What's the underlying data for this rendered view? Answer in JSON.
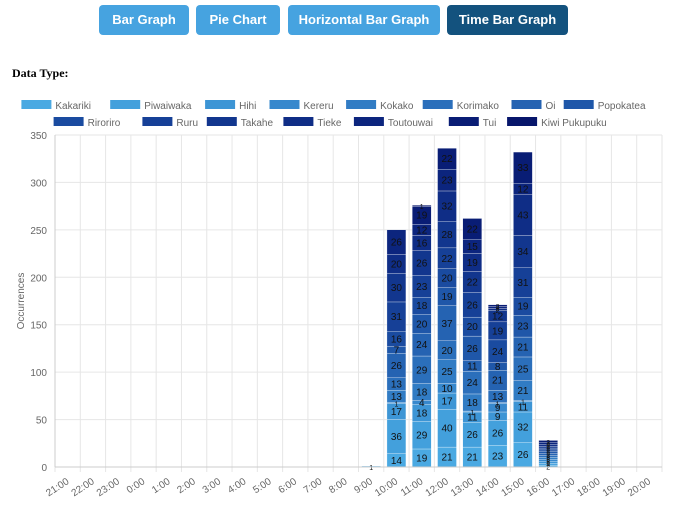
{
  "tabs": [
    {
      "label": "Bar Graph",
      "active": false
    },
    {
      "label": "Pie Chart",
      "active": false
    },
    {
      "label": "Horizontal Bar Graph",
      "active": false
    },
    {
      "label": "Time Bar Graph",
      "active": true
    }
  ],
  "data_type_label": "Data Type:",
  "chart_data": {
    "type": "bar",
    "stacked": true,
    "ylabel": "Occurrences",
    "ylim": [
      0,
      350
    ],
    "yticks": [
      0,
      50,
      100,
      150,
      200,
      250,
      300,
      350
    ],
    "grid": true,
    "legend": "top",
    "categories": [
      "21:00",
      "22:00",
      "23:00",
      "0:00",
      "1:00",
      "2:00",
      "3:00",
      "4:00",
      "5:00",
      "6:00",
      "7:00",
      "8:00",
      "9:00",
      "10:00",
      "11:00",
      "12:00",
      "13:00",
      "14:00",
      "15:00",
      "16:00",
      "17:00",
      "18:00",
      "19:00",
      "20:00"
    ],
    "series": [
      {
        "name": "Kakariki",
        "color": "#4aa9e2",
        "values": [
          0,
          0,
          0,
          0,
          0,
          0,
          0,
          0,
          0,
          0,
          0,
          0,
          1,
          14,
          19,
          21,
          21,
          23,
          26,
          2,
          0,
          0,
          0,
          0
        ]
      },
      {
        "name": "Piwaiwaka",
        "color": "#43a0dc",
        "values": [
          0,
          0,
          0,
          0,
          0,
          0,
          0,
          0,
          0,
          0,
          0,
          0,
          0,
          36,
          29,
          40,
          26,
          26,
          32,
          2,
          0,
          0,
          0,
          0
        ]
      },
      {
        "name": "Hihi",
        "color": "#3d95d5",
        "values": [
          0,
          0,
          0,
          0,
          0,
          0,
          0,
          0,
          0,
          0,
          0,
          0,
          0,
          17,
          18,
          17,
          11,
          9,
          11,
          2,
          0,
          0,
          0,
          0
        ]
      },
      {
        "name": "Kereru",
        "color": "#3788cd",
        "values": [
          0,
          0,
          0,
          0,
          0,
          0,
          0,
          0,
          0,
          0,
          0,
          0,
          0,
          1,
          4,
          10,
          1,
          9,
          1,
          2,
          0,
          0,
          0,
          0
        ]
      },
      {
        "name": "Kokako",
        "color": "#317cc4",
        "values": [
          0,
          0,
          0,
          0,
          0,
          0,
          0,
          0,
          0,
          0,
          0,
          0,
          0,
          13,
          18,
          25,
          18,
          1,
          21,
          2,
          0,
          0,
          0,
          0
        ]
      },
      {
        "name": "Korimako",
        "color": "#2b6fbb",
        "values": [
          0,
          0,
          0,
          0,
          0,
          0,
          0,
          0,
          0,
          0,
          0,
          0,
          0,
          13,
          29,
          20,
          24,
          13,
          25,
          2,
          0,
          0,
          0,
          0
        ]
      },
      {
        "name": "Oi",
        "color": "#2563b2",
        "values": [
          0,
          0,
          0,
          0,
          0,
          0,
          0,
          0,
          0,
          0,
          0,
          0,
          0,
          26,
          24,
          37,
          11,
          21,
          21,
          2,
          0,
          0,
          0,
          0
        ]
      },
      {
        "name": "Popokatea",
        "color": "#1f57a9",
        "values": [
          0,
          0,
          0,
          0,
          0,
          0,
          0,
          0,
          0,
          0,
          0,
          0,
          0,
          7,
          20,
          19,
          26,
          8,
          23,
          2,
          0,
          0,
          0,
          0
        ]
      },
      {
        "name": "Riroriro",
        "color": "#1a4ba0",
        "values": [
          0,
          0,
          0,
          0,
          0,
          0,
          0,
          0,
          0,
          0,
          0,
          0,
          0,
          16,
          18,
          20,
          20,
          24,
          19,
          2,
          0,
          0,
          0,
          0
        ]
      },
      {
        "name": "Ruru",
        "color": "#164097",
        "values": [
          0,
          0,
          0,
          0,
          0,
          0,
          0,
          0,
          0,
          0,
          0,
          0,
          0,
          31,
          23,
          22,
          26,
          19,
          31,
          2,
          0,
          0,
          0,
          0
        ]
      },
      {
        "name": "Takahe",
        "color": "#12368e",
        "values": [
          0,
          0,
          0,
          0,
          0,
          0,
          0,
          0,
          0,
          0,
          0,
          0,
          0,
          30,
          26,
          28,
          22,
          12,
          34,
          2,
          0,
          0,
          0,
          0
        ]
      },
      {
        "name": "Tieke",
        "color": "#0f2d86",
        "values": [
          0,
          0,
          0,
          0,
          0,
          0,
          0,
          0,
          0,
          0,
          0,
          0,
          0,
          20,
          16,
          32,
          19,
          2,
          43,
          2,
          0,
          0,
          0,
          0
        ]
      },
      {
        "name": "Toutouwai",
        "color": "#0c257e",
        "values": [
          0,
          0,
          0,
          0,
          0,
          0,
          0,
          0,
          0,
          0,
          0,
          0,
          0,
          26,
          12,
          23,
          15,
          2,
          12,
          2,
          0,
          0,
          0,
          0
        ]
      },
      {
        "name": "Tui",
        "color": "#091d75",
        "values": [
          0,
          0,
          0,
          0,
          0,
          0,
          0,
          0,
          0,
          0,
          0,
          0,
          0,
          0,
          19,
          22,
          22,
          2,
          33,
          2,
          0,
          0,
          0,
          0
        ]
      },
      {
        "name": "Kiwi Pukupuku",
        "color": "#07166b",
        "values": [
          0,
          0,
          0,
          0,
          0,
          0,
          0,
          0,
          0,
          0,
          0,
          0,
          0,
          0,
          1,
          0,
          0,
          0,
          0,
          0,
          0,
          0,
          0,
          0
        ]
      }
    ]
  }
}
